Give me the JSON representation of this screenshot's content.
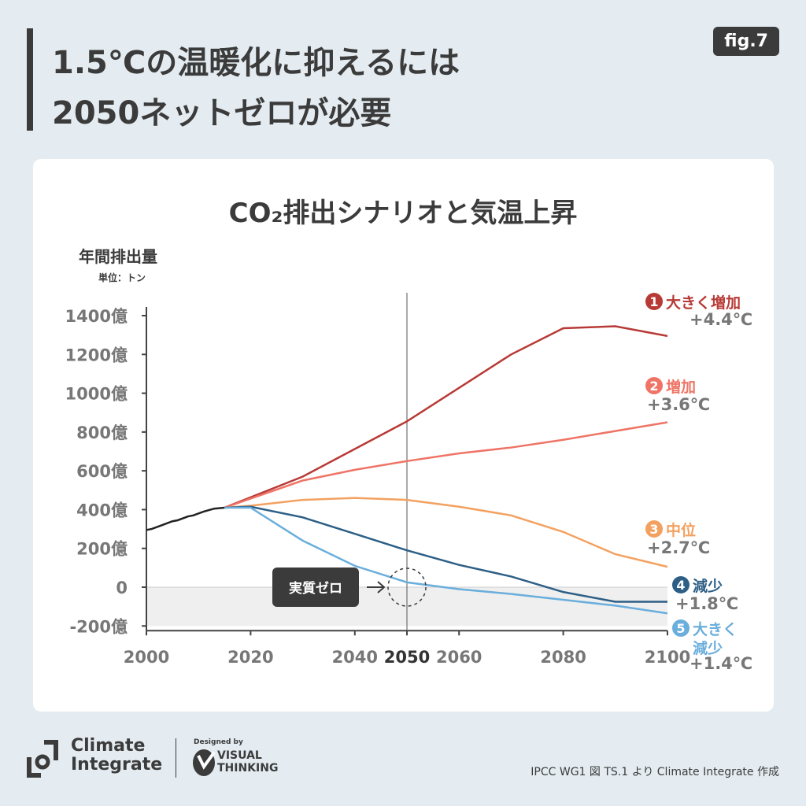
{
  "header": {
    "title_line1": "1.5℃の温暖化に抑えるには",
    "title_line2": "2050ネットゼロが必要",
    "fig_label": "fig.7"
  },
  "chart_data": {
    "type": "line",
    "title": "CO₂排出シナリオと気温上昇",
    "ylabel": "年間排出量",
    "yunit": "単位：トン",
    "xlim": [
      2000,
      2100
    ],
    "ylim": [
      -200,
      1400
    ],
    "xticks": [
      "2000",
      "2020",
      "2040",
      "2050",
      "2060",
      "2080",
      "2100"
    ],
    "yticks": [
      "1400億",
      "1200億",
      "1000億",
      "800億",
      "600億",
      "400億",
      "200億",
      "0",
      "-200億"
    ],
    "annotation": "実質ゼロ",
    "historical": {
      "color": "#222222",
      "x": [
        2000,
        2001,
        2003,
        2005,
        2006,
        2008,
        2009,
        2011,
        2013,
        2015
      ],
      "y": [
        295,
        300,
        320,
        340,
        345,
        365,
        370,
        390,
        405,
        410
      ]
    },
    "series": [
      {
        "name": "大きく増加",
        "number": "1",
        "temp": "+4.4℃",
        "color": "#b83a36",
        "x": [
          2015,
          2030,
          2050,
          2070,
          2080,
          2090,
          2100
        ],
        "y": [
          410,
          570,
          855,
          1200,
          1335,
          1345,
          1295
        ]
      },
      {
        "name": "増加",
        "number": "2",
        "temp": "+3.6℃",
        "color": "#ef7466",
        "x": [
          2015,
          2030,
          2040,
          2050,
          2060,
          2070,
          2080,
          2100
        ],
        "y": [
          410,
          550,
          605,
          650,
          690,
          720,
          760,
          850
        ]
      },
      {
        "name": "中位",
        "number": "3",
        "temp": "+2.7℃",
        "color": "#f3a160",
        "x": [
          2015,
          2020,
          2030,
          2040,
          2050,
          2060,
          2070,
          2080,
          2090,
          2100
        ],
        "y": [
          410,
          420,
          450,
          460,
          450,
          415,
          370,
          285,
          170,
          105
        ]
      },
      {
        "name": "減少",
        "number": "4",
        "temp": "+1.8℃",
        "color": "#2d5f86",
        "x": [
          2015,
          2020,
          2030,
          2040,
          2050,
          2060,
          2070,
          2080,
          2090,
          2100
        ],
        "y": [
          410,
          415,
          360,
          275,
          190,
          115,
          55,
          -25,
          -75,
          -75
        ]
      },
      {
        "name": "大きく減少",
        "number": "5",
        "temp": "+1.4℃",
        "color": "#6aaedc",
        "x": [
          2015,
          2020,
          2030,
          2040,
          2050,
          2060,
          2070,
          2080,
          2090,
          2100
        ],
        "y": [
          410,
          410,
          240,
          110,
          25,
          -10,
          -35,
          -65,
          -95,
          -135
        ]
      }
    ]
  },
  "footer": {
    "logo1_line1": "Climate",
    "logo1_line2": "Integrate",
    "designed_by": "Designed by",
    "logo2_line1": "VISUAL",
    "logo2_line2": "THINKING",
    "source": "IPCC WG1 図 TS.1 より Climate Integrate 作成"
  }
}
